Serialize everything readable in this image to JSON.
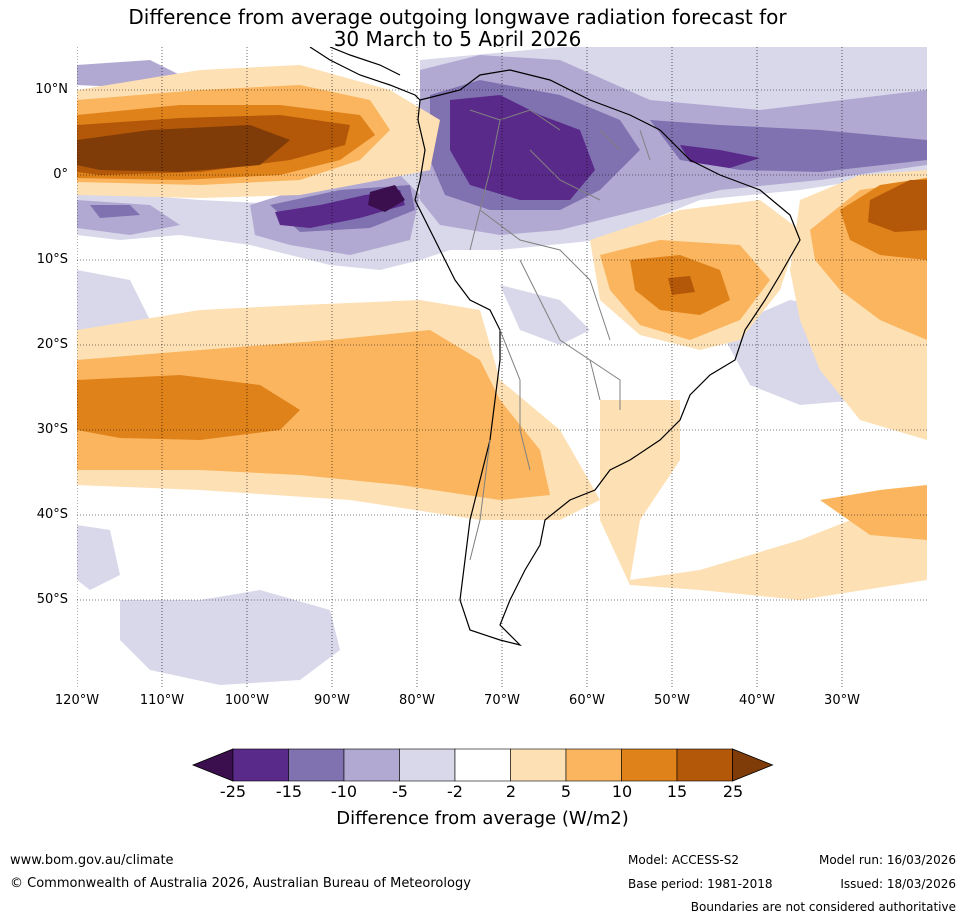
{
  "title": {
    "line1": "Difference from average outgoing longwave radiation forecast for",
    "line2": "30 March to 5 April 2026"
  },
  "map": {
    "lat_labels": [
      "10°N",
      "0°",
      "10°S",
      "20°S",
      "30°S",
      "40°S",
      "50°S"
    ],
    "lon_labels": [
      "120°W",
      "110°W",
      "100°W",
      "90°W",
      "80°W",
      "70°W",
      "60°W",
      "50°W",
      "40°W",
      "30°W"
    ]
  },
  "legend": {
    "title": "Difference from average (W/m2)",
    "ticks": [
      "-25",
      "-15",
      "-10",
      "-5",
      "-2",
      "2",
      "5",
      "10",
      "15",
      "25"
    ],
    "colors": [
      "#3b0f4e",
      "#5a2a8a",
      "#8072b0",
      "#b2a9d2",
      "#d8d8ea",
      "#ffffff",
      "#fde0b3",
      "#fab55e",
      "#e0821a",
      "#b35808",
      "#7f3b08"
    ]
  },
  "footer": {
    "website": "www.bom.gov.au/climate",
    "copyright": "© Commonwealth of Australia 2026, Australian Bureau of Meteorology",
    "model": "Model: ACCESS-S2",
    "base_period": "Base period: 1981-2018",
    "model_run": "Model run: 16/03/2026",
    "issued": "Issued: 18/03/2026",
    "disclaimer": "Boundaries are not considered authoritative"
  }
}
